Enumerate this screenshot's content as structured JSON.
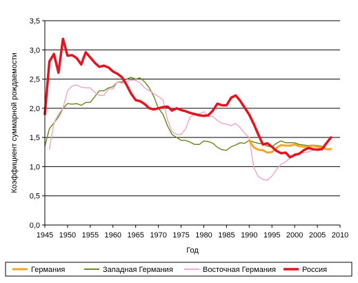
{
  "chart_data": {
    "type": "line",
    "xlabel": "Год",
    "ylabel": "Коэффициент суммарной рождаемости",
    "xlim": [
      1945,
      2010
    ],
    "ylim": [
      0,
      3.5
    ],
    "x_ticks": [
      "1945",
      "1950",
      "1955",
      "1960",
      "1965",
      "1970",
      "1975",
      "1980",
      "1985",
      "1990",
      "1995",
      "2000",
      "2005",
      "2010"
    ],
    "x_tick_values": [
      1945,
      1950,
      1955,
      1960,
      1965,
      1970,
      1975,
      1980,
      1985,
      1990,
      1995,
      2000,
      2005,
      2010
    ],
    "y_ticks": [
      "0,0",
      "0,5",
      "1,0",
      "1,5",
      "2,0",
      "2,5",
      "3,0",
      "3,5"
    ],
    "y_tick_values": [
      0,
      0.5,
      1,
      1.5,
      2,
      2.5,
      3,
      3.5
    ],
    "grid": "horizontal",
    "legend_position": "bottom",
    "series": [
      {
        "name": "Германия",
        "color": "#f5a623",
        "width": 3,
        "x": [
          1990,
          1991,
          1992,
          1993,
          1994,
          1995,
          1996,
          1997,
          1998,
          1999,
          2000,
          2001,
          2002,
          2003,
          2004,
          2005,
          2006,
          2007,
          2008
        ],
        "y": [
          1.45,
          1.33,
          1.29,
          1.28,
          1.24,
          1.25,
          1.32,
          1.37,
          1.36,
          1.36,
          1.38,
          1.35,
          1.34,
          1.34,
          1.36,
          1.34,
          1.33,
          1.3,
          1.3
        ]
      },
      {
        "name": "Западная Германия",
        "color": "#6b8e23",
        "width": 1.5,
        "x": [
          1945,
          1946,
          1947,
          1948,
          1949,
          1950,
          1951,
          1952,
          1953,
          1954,
          1955,
          1956,
          1957,
          1958,
          1959,
          1960,
          1961,
          1962,
          1963,
          1964,
          1965,
          1966,
          1967,
          1968,
          1969,
          1970,
          1971,
          1972,
          1973,
          1974,
          1975,
          1976,
          1977,
          1978,
          1979,
          1980,
          1981,
          1982,
          1983,
          1984,
          1985,
          1986,
          1987,
          1988,
          1989,
          1990,
          1991,
          1992,
          1993,
          1994,
          1995,
          1996,
          1997,
          1998,
          1999,
          2000,
          2001,
          2002,
          2003,
          2004,
          2005,
          2006
        ],
        "y": [
          1.35,
          1.65,
          1.75,
          1.85,
          2.0,
          2.08,
          2.07,
          2.08,
          2.05,
          2.1,
          2.1,
          2.2,
          2.3,
          2.3,
          2.35,
          2.37,
          2.45,
          2.45,
          2.5,
          2.53,
          2.5,
          2.52,
          2.45,
          2.35,
          2.2,
          2.0,
          1.9,
          1.7,
          1.55,
          1.5,
          1.45,
          1.45,
          1.42,
          1.38,
          1.38,
          1.44,
          1.43,
          1.4,
          1.33,
          1.29,
          1.28,
          1.34,
          1.37,
          1.41,
          1.4,
          1.45,
          1.42,
          1.4,
          1.39,
          1.35,
          1.34,
          1.4,
          1.44,
          1.41,
          1.41,
          1.41,
          1.38,
          1.37,
          1.36,
          1.37,
          1.36,
          1.35
        ]
      },
      {
        "name": "Восточная Германия",
        "color": "#f4a7c8",
        "width": 1.5,
        "x": [
          1946,
          1947,
          1948,
          1949,
          1950,
          1951,
          1952,
          1953,
          1954,
          1955,
          1956,
          1957,
          1958,
          1959,
          1960,
          1961,
          1962,
          1963,
          1964,
          1965,
          1966,
          1967,
          1968,
          1969,
          1970,
          1971,
          1972,
          1973,
          1974,
          1975,
          1976,
          1977,
          1978,
          1979,
          1980,
          1981,
          1982,
          1983,
          1984,
          1985,
          1986,
          1987,
          1988,
          1989,
          1990,
          1991,
          1992,
          1993,
          1994,
          1995,
          1996,
          1997,
          1998,
          1999,
          2000,
          2001,
          2002,
          2003,
          2004,
          2005,
          2006
        ],
        "y": [
          1.3,
          1.75,
          1.9,
          2.0,
          2.3,
          2.38,
          2.4,
          2.36,
          2.35,
          2.35,
          2.27,
          2.22,
          2.22,
          2.33,
          2.33,
          2.45,
          2.43,
          2.46,
          2.48,
          2.48,
          2.43,
          2.35,
          2.3,
          2.25,
          2.2,
          2.15,
          1.8,
          1.6,
          1.55,
          1.55,
          1.65,
          1.85,
          1.9,
          1.9,
          1.94,
          1.86,
          1.86,
          1.79,
          1.74,
          1.73,
          1.7,
          1.74,
          1.67,
          1.57,
          1.5,
          0.98,
          0.83,
          0.78,
          0.77,
          0.84,
          0.95,
          1.04,
          1.08,
          1.15,
          1.22,
          1.23,
          1.24,
          1.25,
          1.28,
          1.3,
          1.3
        ]
      },
      {
        "name": "Россия",
        "color": "#e8121e",
        "width": 3.5,
        "x": [
          1945,
          1946,
          1947,
          1948,
          1949,
          1950,
          1951,
          1952,
          1953,
          1954,
          1955,
          1956,
          1957,
          1958,
          1959,
          1960,
          1961,
          1962,
          1963,
          1964,
          1965,
          1966,
          1967,
          1968,
          1969,
          1970,
          1971,
          1972,
          1973,
          1974,
          1975,
          1976,
          1977,
          1978,
          1979,
          1980,
          1981,
          1982,
          1983,
          1984,
          1985,
          1986,
          1987,
          1988,
          1989,
          1990,
          1991,
          1992,
          1993,
          1994,
          1995,
          1996,
          1997,
          1998,
          1999,
          2000,
          2001,
          2002,
          2003,
          2004,
          2005,
          2006,
          2007,
          2008
        ],
        "y": [
          1.9,
          2.8,
          2.93,
          2.61,
          3.19,
          2.9,
          2.91,
          2.86,
          2.75,
          2.96,
          2.87,
          2.78,
          2.71,
          2.73,
          2.7,
          2.63,
          2.59,
          2.53,
          2.4,
          2.25,
          2.14,
          2.12,
          2.07,
          2.0,
          1.98,
          2.0,
          2.02,
          2.03,
          1.96,
          2.0,
          1.97,
          1.95,
          1.92,
          1.9,
          1.88,
          1.87,
          1.88,
          1.96,
          2.08,
          2.05,
          2.05,
          2.18,
          2.22,
          2.13,
          2.01,
          1.89,
          1.73,
          1.55,
          1.38,
          1.4,
          1.34,
          1.27,
          1.23,
          1.24,
          1.16,
          1.2,
          1.22,
          1.28,
          1.32,
          1.3,
          1.29,
          1.3,
          1.4,
          1.5
        ]
      }
    ]
  }
}
